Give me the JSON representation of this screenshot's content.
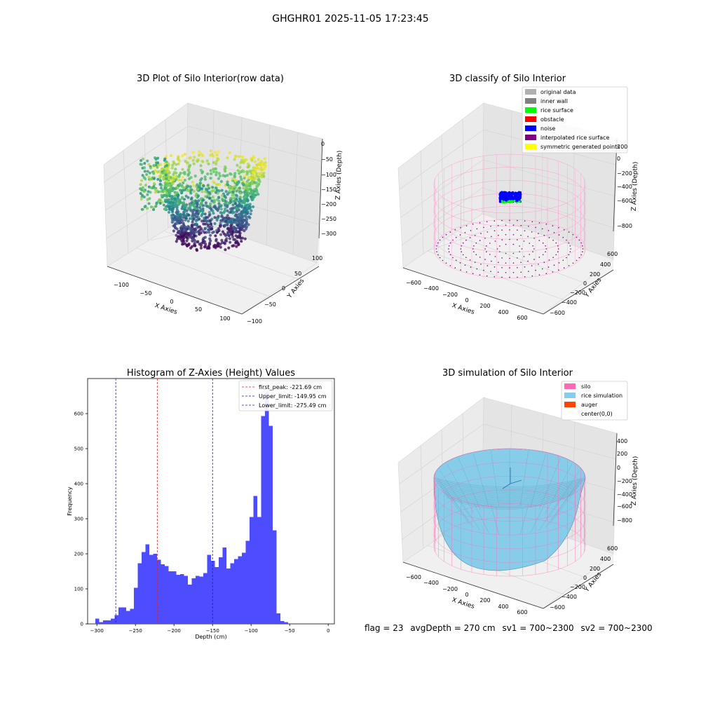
{
  "figure_title": "GHGHR01 2025-11-05 17:23:45",
  "footer": {
    "flag": "flag = 23",
    "avg_depth": "avgDepth = 270 cm",
    "sv1": "sv1 = 700~2300",
    "sv2": "sv2 = 700~2300"
  },
  "colors": {
    "histogram": "#4d4dff",
    "first_peak": "#e02020",
    "limits": "#1a1acc",
    "silo": "#ff69b4",
    "rice": "#87cdea",
    "auger": "#ff4500"
  },
  "chart_data": [
    {
      "type": "scatter",
      "subtype": "3d",
      "title": "3D Plot of Silo Interior(row data)",
      "xlabel": "X Axies",
      "ylabel": "Y Axies",
      "zlabel": "Z Axies (Depth)",
      "xticks": [
        "−100",
        "−50",
        "0",
        "50",
        "100"
      ],
      "yticks": [
        "100",
        "50",
        "0",
        "−50",
        "−100"
      ],
      "zticks": [
        "0",
        "−50",
        "−100",
        "−150",
        "−200",
        "−250",
        "−300"
      ],
      "zlim": [
        -320,
        0
      ],
      "colormap": "viridis"
    },
    {
      "type": "scatter",
      "subtype": "3d",
      "title": "3D classify of Silo Interior",
      "xlabel": "X Axies",
      "ylabel": "Y Axies",
      "zlabel": "Z Axies (Depth)",
      "xticks": [
        "−600",
        "−400",
        "−200",
        "0",
        "200",
        "400",
        "600"
      ],
      "yticks": [
        "600",
        "400",
        "200",
        "0",
        "−200",
        "−400",
        "−600"
      ],
      "zticks": [
        "200",
        "0",
        "−200",
        "−400",
        "−600",
        "−800"
      ],
      "legend": [
        {
          "label": "original data",
          "color": "#b0b0b0"
        },
        {
          "label": "inner wall",
          "color": "#808080"
        },
        {
          "label": "rice surface",
          "color": "#00ff00"
        },
        {
          "label": "obstacle",
          "color": "#ff0000"
        },
        {
          "label": "noise",
          "color": "#0000ff"
        },
        {
          "label": "interpolated rice surface",
          "color": "#800080"
        },
        {
          "label": "symmetric generated points",
          "color": "#ffff00"
        }
      ],
      "legend_loc": "upper right"
    },
    {
      "type": "bar",
      "subtype": "histogram",
      "title": "Histogram of Z-Axies (Height) Values",
      "xlabel": "Depth (cm)",
      "ylabel": "Frequency",
      "xlim": [
        -312,
        8
      ],
      "ylim": [
        0,
        700
      ],
      "xticks": [
        -300,
        -250,
        -200,
        -150,
        -100,
        -50,
        0
      ],
      "yticks": [
        0,
        100,
        200,
        300,
        400,
        500,
        600
      ],
      "bin_width": 5,
      "bin_start": -302,
      "values": [
        15,
        5,
        10,
        10,
        15,
        25,
        47,
        47,
        37,
        43,
        103,
        173,
        205,
        227,
        197,
        200,
        183,
        170,
        165,
        150,
        150,
        140,
        142,
        137,
        112,
        130,
        137,
        135,
        145,
        197,
        180,
        162,
        190,
        218,
        158,
        173,
        185,
        193,
        203,
        237,
        305,
        365,
        305,
        593,
        660,
        565,
        267,
        30,
        8,
        5
      ],
      "lines": [
        {
          "label": "first_peak: -221.69 cm",
          "x": -221.69,
          "color": "#e02020"
        },
        {
          "label": "Upper_limit: -149.95 cm",
          "x": -149.95,
          "color": "#1a1acc"
        },
        {
          "label": "Lower_limit: -275.49 cm",
          "x": -275.49,
          "color": "#1a1acc"
        }
      ],
      "legend_loc": "upper right"
    },
    {
      "type": "area",
      "subtype": "3d-surface",
      "title": "3D simulation of Silo Interior",
      "xlabel": "X Axies",
      "ylabel": "Y Axies",
      "zlabel": "Z Axies (Depth)",
      "xticks": [
        "−600",
        "−400",
        "−200",
        "0",
        "200",
        "400",
        "600"
      ],
      "yticks": [
        "600",
        "400",
        "200",
        "0",
        "−200",
        "−400",
        "−600"
      ],
      "zticks": [
        "400",
        "200",
        "0",
        "−200",
        "−400",
        "−600",
        "−800"
      ],
      "legend": [
        {
          "label": "silo",
          "color": "#ff69b4"
        },
        {
          "label": "rice simulation",
          "color": "#87cdea"
        },
        {
          "label": "auger",
          "color": "#ff4500"
        },
        {
          "label": "center(0,0)",
          "color": ""
        }
      ],
      "legend_loc": "upper right"
    }
  ]
}
